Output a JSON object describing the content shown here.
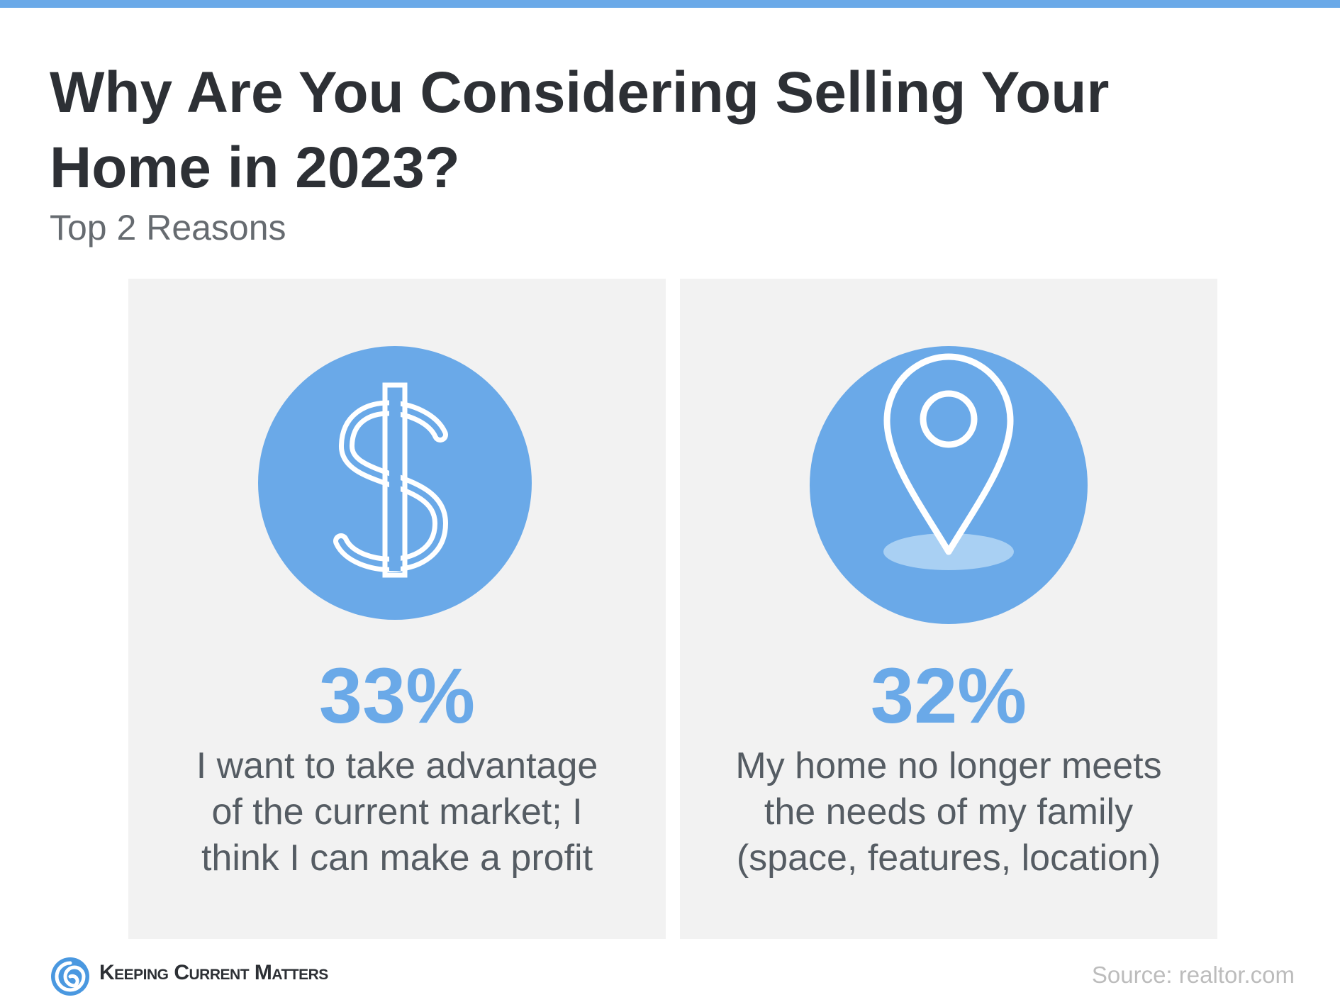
{
  "header": {
    "title": "Why Are You Considering Selling Your Home in 2023?",
    "subtitle": "Top 2 Reasons"
  },
  "cards": [
    {
      "stat": "33%",
      "text": "I want to take advantage of the current market; I think I can make a profit"
    },
    {
      "stat": "32%",
      "text": "My home no longer meets the needs of my family (space, features, location)"
    }
  ],
  "footer": {
    "brand": "Keeping Current Matters",
    "source": "Source: realtor.com"
  }
}
